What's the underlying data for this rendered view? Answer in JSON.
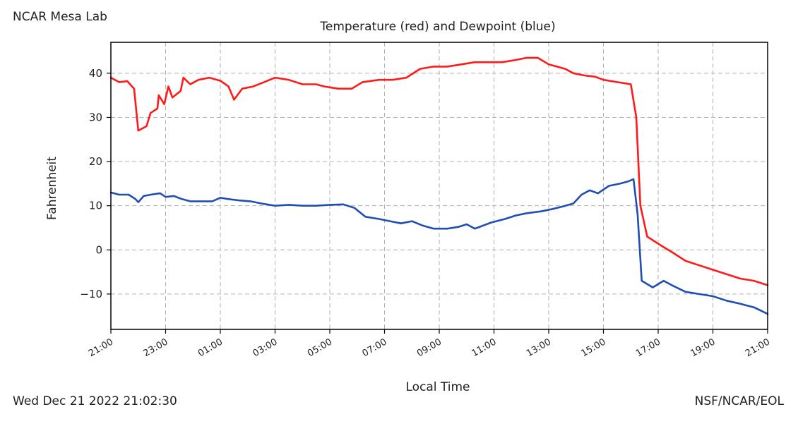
{
  "station": "NCAR Mesa Lab",
  "timestamp": "Wed Dec 21 2022 21:02:30",
  "source": "NSF/NCAR/EOL",
  "colors": {
    "temperature": "#ff1a1a",
    "dewpoint": "#1f4fb0",
    "grid": "#b0b0b0",
    "axis": "#000000"
  },
  "chart_data": {
    "type": "line",
    "title": "Temperature (red) and Dewpoint (blue)",
    "xlabel": "Local Time",
    "ylabel": "Fahrenheit",
    "x_unit": "hours since start of window (local time)",
    "xlim": [
      0,
      24
    ],
    "ylim": [
      -18,
      47
    ],
    "yticks": [
      -10,
      0,
      10,
      20,
      30,
      40
    ],
    "xticks": [
      0,
      2,
      4,
      6,
      8,
      10,
      12,
      14,
      16,
      18,
      20,
      22,
      24
    ],
    "xtick_labels": [
      "21:00",
      "23:00",
      "01:00",
      "03:00",
      "05:00",
      "07:00",
      "09:00",
      "11:00",
      "13:00",
      "15:00",
      "17:00",
      "19:00",
      "21:00"
    ],
    "grid": true,
    "legend": "none (colors described in title)",
    "series": [
      {
        "name": "Temperature",
        "color": "#ff1a1a",
        "points": [
          [
            0,
            39
          ],
          [
            0.3,
            38
          ],
          [
            0.6,
            38.2
          ],
          [
            0.85,
            36.5
          ],
          [
            1.0,
            27
          ],
          [
            1.3,
            28
          ],
          [
            1.45,
            31
          ],
          [
            1.7,
            32
          ],
          [
            1.75,
            35
          ],
          [
            1.95,
            33
          ],
          [
            2.1,
            37
          ],
          [
            2.25,
            34.5
          ],
          [
            2.55,
            36
          ],
          [
            2.65,
            39
          ],
          [
            2.9,
            37.5
          ],
          [
            3.2,
            38.5
          ],
          [
            3.6,
            39
          ],
          [
            4.0,
            38.3
          ],
          [
            4.3,
            37
          ],
          [
            4.5,
            34
          ],
          [
            4.8,
            36.5
          ],
          [
            5.2,
            37
          ],
          [
            5.6,
            38
          ],
          [
            6.0,
            39
          ],
          [
            6.5,
            38.5
          ],
          [
            7.0,
            37.5
          ],
          [
            7.5,
            37.5
          ],
          [
            7.8,
            37
          ],
          [
            8.3,
            36.5
          ],
          [
            8.8,
            36.5
          ],
          [
            9.2,
            38
          ],
          [
            9.8,
            38.5
          ],
          [
            10.3,
            38.5
          ],
          [
            10.8,
            39
          ],
          [
            11.3,
            41
          ],
          [
            11.8,
            41.5
          ],
          [
            12.3,
            41.5
          ],
          [
            12.8,
            42
          ],
          [
            13.3,
            42.5
          ],
          [
            13.8,
            42.5
          ],
          [
            14.3,
            42.5
          ],
          [
            14.8,
            43
          ],
          [
            15.2,
            43.5
          ],
          [
            15.6,
            43.5
          ],
          [
            16.0,
            42
          ],
          [
            16.3,
            41.5
          ],
          [
            16.6,
            41
          ],
          [
            16.9,
            40
          ],
          [
            17.3,
            39.5
          ],
          [
            17.7,
            39.2
          ],
          [
            18.0,
            38.5
          ],
          [
            18.5,
            38
          ],
          [
            19.0,
            37.5
          ],
          [
            19.2,
            30
          ],
          [
            19.35,
            10
          ],
          [
            19.6,
            3
          ],
          [
            20.1,
            1
          ],
          [
            20.5,
            -0.5
          ],
          [
            21.0,
            -2.5
          ],
          [
            21.5,
            -3.5
          ],
          [
            22.0,
            -4.5
          ],
          [
            22.5,
            -5.5
          ],
          [
            23.0,
            -6.5
          ],
          [
            23.5,
            -7
          ],
          [
            24.0,
            -8
          ]
        ]
      },
      {
        "name": "Dewpoint",
        "color": "#1f4fb0",
        "points": [
          [
            0,
            13
          ],
          [
            0.3,
            12.5
          ],
          [
            0.65,
            12.5
          ],
          [
            0.9,
            11.5
          ],
          [
            1.0,
            10.8
          ],
          [
            1.2,
            12.2
          ],
          [
            1.55,
            12.6
          ],
          [
            1.8,
            12.8
          ],
          [
            2.0,
            12
          ],
          [
            2.3,
            12.2
          ],
          [
            2.6,
            11.5
          ],
          [
            2.9,
            11
          ],
          [
            3.3,
            11
          ],
          [
            3.7,
            11
          ],
          [
            4.0,
            11.8
          ],
          [
            4.3,
            11.5
          ],
          [
            4.7,
            11.2
          ],
          [
            5.1,
            11
          ],
          [
            5.5,
            10.5
          ],
          [
            6.0,
            10
          ],
          [
            6.5,
            10.2
          ],
          [
            7.0,
            10
          ],
          [
            7.5,
            10
          ],
          [
            8.0,
            10.2
          ],
          [
            8.5,
            10.3
          ],
          [
            8.9,
            9.5
          ],
          [
            9.3,
            7.5
          ],
          [
            9.8,
            7
          ],
          [
            10.2,
            6.5
          ],
          [
            10.6,
            6
          ],
          [
            11.0,
            6.5
          ],
          [
            11.4,
            5.5
          ],
          [
            11.8,
            4.8
          ],
          [
            12.3,
            4.8
          ],
          [
            12.7,
            5.2
          ],
          [
            13.0,
            5.8
          ],
          [
            13.3,
            4.8
          ],
          [
            13.6,
            5.5
          ],
          [
            13.9,
            6.2
          ],
          [
            14.4,
            7
          ],
          [
            14.8,
            7.8
          ],
          [
            15.2,
            8.3
          ],
          [
            15.7,
            8.7
          ],
          [
            16.1,
            9.2
          ],
          [
            16.5,
            9.8
          ],
          [
            16.9,
            10.5
          ],
          [
            17.2,
            12.5
          ],
          [
            17.5,
            13.5
          ],
          [
            17.8,
            12.8
          ],
          [
            18.2,
            14.5
          ],
          [
            18.6,
            15
          ],
          [
            18.9,
            15.5
          ],
          [
            19.1,
            16
          ],
          [
            19.25,
            8
          ],
          [
            19.4,
            -7
          ],
          [
            19.8,
            -8.5
          ],
          [
            20.2,
            -7
          ],
          [
            20.5,
            -8
          ],
          [
            21.0,
            -9.5
          ],
          [
            21.5,
            -10
          ],
          [
            22.0,
            -10.5
          ],
          [
            22.5,
            -11.5
          ],
          [
            23.0,
            -12.2
          ],
          [
            23.5,
            -13
          ],
          [
            24.0,
            -14.5
          ]
        ]
      }
    ]
  }
}
